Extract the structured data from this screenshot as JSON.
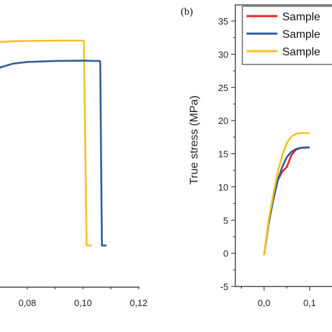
{
  "chart_data": [
    {
      "type": "line",
      "xlim": [
        0.06,
        0.12
      ],
      "x_ticks": [
        "0,08",
        "0,10",
        "0,12"
      ],
      "x_tick_values": [
        0.08,
        0.1,
        0.12
      ],
      "grid": false,
      "series": [
        {
          "color": "#F5C021",
          "points": [
            [
              0.0585,
              31.1
            ],
            [
              0.062,
              31.5
            ],
            [
              0.066,
              31.8
            ],
            [
              0.07,
              31.95
            ],
            [
              0.075,
              32.05
            ],
            [
              0.08,
              32.1
            ],
            [
              0.09,
              32.15
            ],
            [
              0.1,
              32.15
            ],
            [
              0.1003,
              32.1
            ],
            [
              0.1013,
              0.5
            ],
            [
              0.1023,
              0.5
            ],
            [
              0.1031,
              0.5
            ]
          ]
        },
        {
          "color": "#2D5C98",
          "points": [
            [
              0.0585,
              27.8
            ],
            [
              0.062,
              27.9
            ],
            [
              0.066,
              27.6
            ],
            [
              0.0685,
              27.7
            ],
            [
              0.071,
              28.1
            ],
            [
              0.075,
              28.6
            ],
            [
              0.08,
              28.85
            ],
            [
              0.09,
              29.0
            ],
            [
              0.1,
              29.05
            ],
            [
              0.106,
              29.0
            ],
            [
              0.1062,
              28.9
            ],
            [
              0.1068,
              0.5
            ],
            [
              0.1078,
              0.5
            ],
            [
              0.1084,
              0.5
            ]
          ]
        }
      ]
    },
    {
      "type": "line",
      "panel_label": "(b)",
      "ylabel": "True stress (MPa)",
      "ylim": [
        -5,
        37
      ],
      "xlim": [
        -0.02,
        0.12
      ],
      "y_ticks": [
        "-5",
        "0",
        "5",
        "10",
        "15",
        "20",
        "25",
        "30",
        "35"
      ],
      "y_tick_values": [
        -5,
        0,
        5,
        10,
        15,
        20,
        25,
        30,
        35
      ],
      "x_ticks": [
        "0,0",
        "0,1"
      ],
      "x_tick_values": [
        0.0,
        0.1
      ],
      "grid": false,
      "legend_position": "top-right",
      "series": [
        {
          "name": "Sample",
          "color": "#E3262A",
          "points": [
            [
              0.0,
              -0.3
            ],
            [
              0.01,
              4.5
            ],
            [
              0.02,
              8.0
            ],
            [
              0.03,
              11.0
            ],
            [
              0.04,
              12.3
            ],
            [
              0.05,
              13.0
            ],
            [
              0.06,
              14.8
            ],
            [
              0.07,
              15.6
            ],
            [
              0.08,
              15.85
            ],
            [
              0.09,
              15.9
            ],
            [
              0.1,
              15.95
            ]
          ]
        },
        {
          "name": "Sample",
          "color": "#2D5C98",
          "points": [
            [
              0.0,
              -0.3
            ],
            [
              0.01,
              4.5
            ],
            [
              0.02,
              8.0
            ],
            [
              0.03,
              11.0
            ],
            [
              0.04,
              13.0
            ],
            [
              0.05,
              14.5
            ],
            [
              0.06,
              15.3
            ],
            [
              0.07,
              15.7
            ],
            [
              0.08,
              15.9
            ],
            [
              0.09,
              15.95
            ],
            [
              0.1,
              15.95
            ]
          ]
        },
        {
          "name": "Sample",
          "color": "#F5C021",
          "points": [
            [
              0.0,
              -0.3
            ],
            [
              0.01,
              5.0
            ],
            [
              0.02,
              8.8
            ],
            [
              0.03,
              12.2
            ],
            [
              0.04,
              14.8
            ],
            [
              0.05,
              16.6
            ],
            [
              0.06,
              17.6
            ],
            [
              0.07,
              18.0
            ],
            [
              0.08,
              18.1
            ],
            [
              0.09,
              18.1
            ],
            [
              0.1,
              18.1
            ]
          ]
        }
      ]
    }
  ]
}
